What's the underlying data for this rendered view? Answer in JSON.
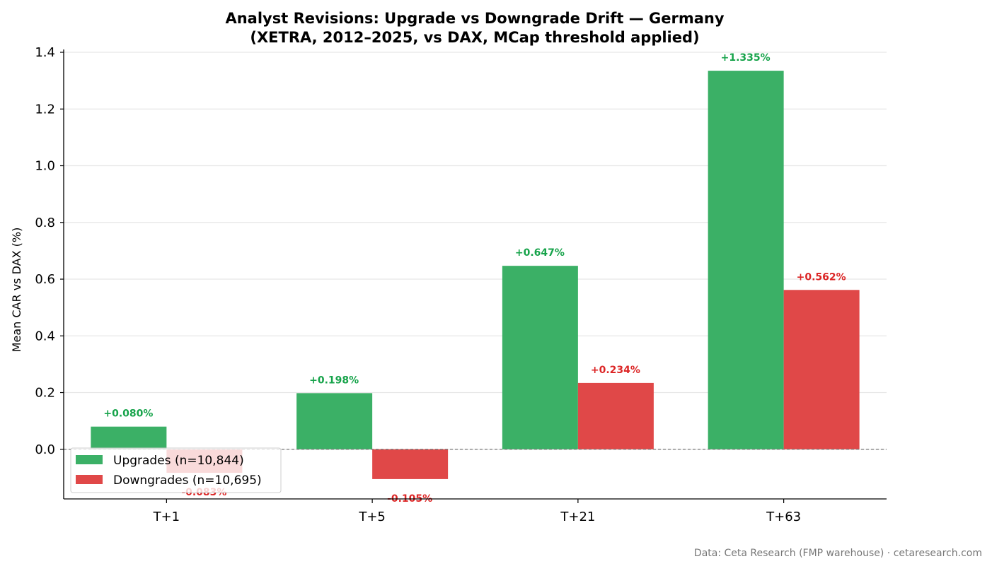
{
  "chart_data": {
    "type": "bar",
    "title_line1": "Analyst Revisions: Upgrade vs Downgrade Drift — Germany",
    "title_line2": "(XETRA, 2012–2025, vs DAX, MCap threshold applied)",
    "xlabel": "",
    "ylabel": "Mean CAR vs DAX (%)",
    "categories": [
      "T+1",
      "T+5",
      "T+21",
      "T+63"
    ],
    "series": [
      {
        "name": "Upgrades (n=10,844)",
        "color": "#3bb066",
        "label_color": "#16a34a",
        "values": [
          0.08,
          0.198,
          0.647,
          1.335
        ],
        "labels": [
          "+0.080%",
          "+0.198%",
          "+0.647%",
          "+1.335%"
        ]
      },
      {
        "name": "Downgrades (n=10,695)",
        "color": "#e04848",
        "label_color": "#dc2626",
        "values": [
          -0.083,
          -0.105,
          0.234,
          0.562
        ],
        "labels": [
          "-0.083%",
          "-0.105%",
          "+0.234%",
          "+0.562%"
        ]
      }
    ],
    "ylim": [
      -0.175,
      1.41
    ],
    "yticks": [
      "0.0",
      "0.2",
      "0.4",
      "0.6",
      "0.8",
      "1.0",
      "1.2",
      "1.4"
    ],
    "ytick_values": [
      0.0,
      0.2,
      0.4,
      0.6,
      0.8,
      1.0,
      1.2,
      1.4
    ],
    "grid": "horizontal",
    "zero_line": "dashed",
    "legend_position": "lower-left"
  },
  "footer": "Data: Ceta Research (FMP warehouse) · cetaresearch.com"
}
